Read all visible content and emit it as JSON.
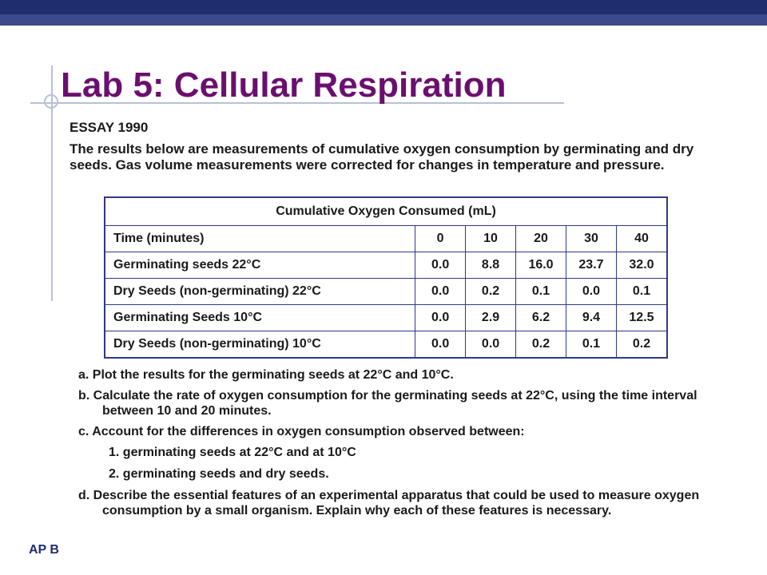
{
  "slide": {
    "title": "Lab 5: Cellular Respiration",
    "essay_label": "ESSAY 1990",
    "intro": "The results below are measurements of cumulative oxygen consumption by germinating and dry seeds. Gas volume measurements were corrected for changes in temperature and pressure.",
    "footer": "AP B"
  },
  "table": {
    "caption": "Cumulative Oxygen Consumed (mL)",
    "header_label": "Time (minutes)",
    "times": [
      "0",
      "10",
      "20",
      "30",
      "40"
    ],
    "rows": [
      {
        "label": "Germinating seeds 22°C",
        "values": [
          "0.0",
          "8.8",
          "16.0",
          "23.7",
          "32.0"
        ]
      },
      {
        "label": "Dry Seeds (non-germinating) 22°C",
        "values": [
          "0.0",
          "0.2",
          "0.1",
          "0.0",
          "0.1"
        ]
      },
      {
        "label": "Germinating Seeds 10°C",
        "values": [
          "0.0",
          "2.9",
          "6.2",
          "9.4",
          "12.5"
        ]
      },
      {
        "label": "Dry Seeds (non-germinating) 10°C",
        "values": [
          "0.0",
          "0.0",
          "0.2",
          "0.1",
          "0.2"
        ]
      }
    ]
  },
  "questions": {
    "a": "a.  Plot the results for the germinating seeds at 22°C and 10°C.",
    "b": "b.  Calculate the rate of oxygen consumption for the germinating seeds at 22°C, using the time interval between 10 and 20 minutes.",
    "c": "c.  Account for the differences in oxygen consumption observed between:",
    "c1": "1. germinating seeds at 22°C and at 10°C",
    "c2": "2. germinating seeds and dry seeds.",
    "d": "d.  Describe the essential features of an experimental apparatus that could be used to measure oxygen consumption by a small organism. Explain why each of these features is necessary."
  },
  "colors": {
    "title": "#6b0f6e",
    "top_bar": "#1f2d6e",
    "table_border": "#2e3a86"
  }
}
